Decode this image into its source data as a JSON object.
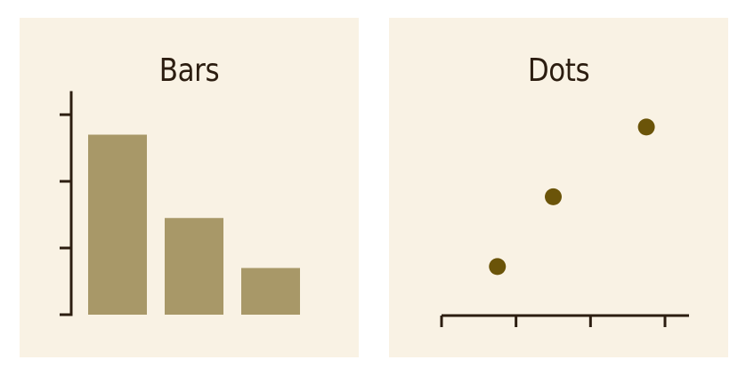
{
  "colors": {
    "panel_background": "#f9f2e4",
    "bar_fill": "#a89868",
    "dot_fill": "#6b5409",
    "axis": "#2c1d10",
    "title": "#2c1d10"
  },
  "chart_data": [
    {
      "type": "bar",
      "title": "Bars",
      "categories": [
        "",
        "",
        ""
      ],
      "values": [
        2.7,
        1.45,
        0.7
      ],
      "ylim": [
        0,
        3.0
      ],
      "yticks": [
        1,
        2,
        3
      ],
      "xlabel": "",
      "ylabel": "",
      "grid": false,
      "tick_labels": false
    },
    {
      "type": "scatter",
      "title": "Dots",
      "x": [
        0.75,
        1.5,
        2.75
      ],
      "y": [
        0.6,
        1.6,
        2.6
      ],
      "xlim": [
        0,
        3.05
      ],
      "ylim": [
        0,
        3.3
      ],
      "xticks": [
        0,
        1,
        2,
        3
      ],
      "xlabel": "",
      "ylabel": "",
      "grid": false,
      "tick_labels": false
    }
  ]
}
